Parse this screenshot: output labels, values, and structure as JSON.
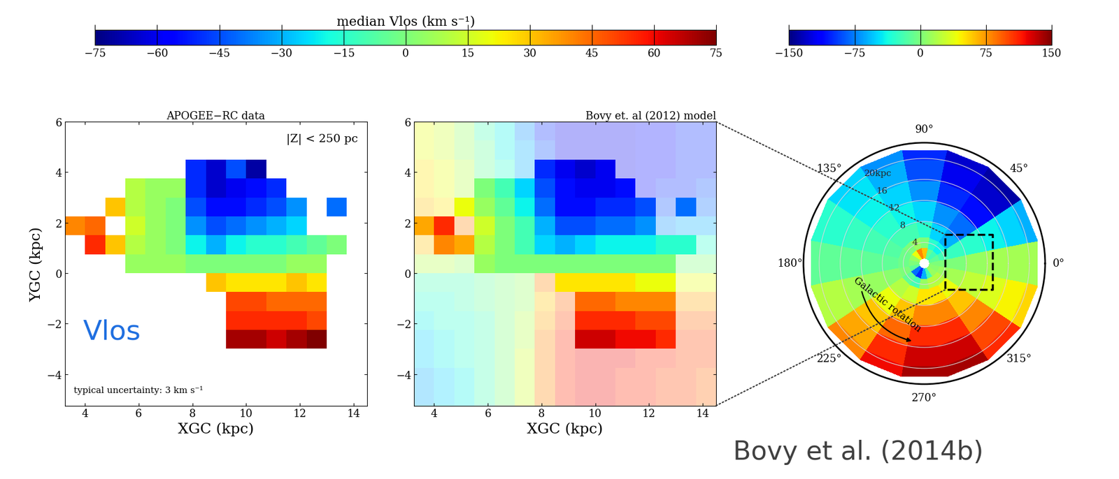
{
  "chart_data": [
    {
      "type": "heatmap",
      "title": "APOGEE−RC data",
      "xlabel": "XGC (kpc)",
      "ylabel": "YGC (kpc)",
      "annotations": [
        "|Z| < 250 pc",
        "Vlos",
        "typical uncertainty: 3 km s⁻¹"
      ],
      "colorbar_label": "median Vlos (km s⁻¹)",
      "colorbar_lim": [
        -75,
        75
      ],
      "colorbar_ticks": [
        {
          "value": -75,
          "label": "−75"
        },
        {
          "value": -60,
          "label": "−60"
        },
        {
          "value": -45,
          "label": "−45"
        },
        {
          "value": -30,
          "label": "−30"
        },
        {
          "value": -15,
          "label": "−15"
        },
        0,
        15,
        30,
        45,
        60,
        75
      ],
      "xlim": [
        3.25,
        14.5
      ],
      "ylim": [
        -5.25,
        6.0
      ],
      "xticks": [
        4,
        6,
        8,
        10,
        12,
        14
      ],
      "yticks": [
        {
          "value": -4,
          "label": "−4"
        },
        {
          "value": -2,
          "label": "−2"
        },
        0,
        2,
        4,
        6
      ],
      "x_edges": [
        3.25,
        4.0,
        4.75,
        5.5,
        6.25,
        7.0,
        7.75,
        8.5,
        9.25,
        10.0,
        10.75,
        11.5,
        12.25,
        13.0,
        13.75,
        14.5
      ],
      "y_edges": [
        -5.25,
        -4.5,
        -3.75,
        -3.0,
        -2.25,
        -1.5,
        -0.75,
        0.0,
        0.75,
        1.5,
        2.25,
        3.0,
        3.75,
        4.5,
        5.25,
        6.0
      ],
      "values": [
        [
          null,
          null,
          null,
          null,
          null,
          null,
          null,
          null,
          null,
          null,
          null,
          null,
          null,
          null,
          null
        ],
        [
          null,
          null,
          null,
          null,
          null,
          null,
          null,
          null,
          null,
          null,
          null,
          null,
          null,
          null,
          null
        ],
        [
          null,
          null,
          null,
          null,
          null,
          null,
          null,
          null,
          null,
          null,
          null,
          null,
          null,
          null,
          null
        ],
        [
          null,
          null,
          null,
          null,
          null,
          null,
          null,
          null,
          70,
          70,
          65,
          70,
          75,
          null,
          null
        ],
        [
          null,
          null,
          null,
          null,
          null,
          null,
          null,
          null,
          55,
          55,
          55,
          55,
          50,
          null,
          null
        ],
        [
          null,
          null,
          null,
          null,
          null,
          null,
          null,
          null,
          50,
          50,
          45,
          45,
          45,
          null,
          null
        ],
        [
          null,
          null,
          null,
          null,
          null,
          null,
          null,
          30,
          25,
          25,
          25,
          30,
          25,
          null,
          null
        ],
        [
          null,
          null,
          null,
          5,
          5,
          5,
          0,
          0,
          0,
          0,
          0,
          5,
          5,
          null,
          null
        ],
        [
          null,
          55,
          30,
          10,
          5,
          0,
          -20,
          -30,
          -20,
          -15,
          -15,
          -10,
          -5,
          0,
          null
        ],
        [
          40,
          45,
          null,
          15,
          5,
          0,
          -35,
          -45,
          -40,
          -35,
          -30,
          -25,
          null,
          null,
          null
        ],
        [
          null,
          null,
          30,
          10,
          5,
          0,
          -45,
          -55,
          -55,
          -50,
          -45,
          -35,
          null,
          -40,
          null
        ],
        [
          null,
          null,
          null,
          10,
          5,
          5,
          -50,
          -65,
          -60,
          -55,
          -50,
          null,
          null,
          null,
          null
        ],
        [
          null,
          null,
          null,
          null,
          null,
          null,
          -50,
          -65,
          -45,
          -70,
          null,
          null,
          null,
          null,
          null
        ],
        [
          null,
          null,
          null,
          null,
          null,
          null,
          null,
          null,
          null,
          null,
          null,
          null,
          null,
          null,
          null
        ],
        [
          null,
          null,
          null,
          null,
          null,
          null,
          null,
          null,
          null,
          null,
          null,
          null,
          null,
          null,
          null
        ]
      ]
    },
    {
      "type": "heatmap",
      "title": "Bovy et. al (2012) model",
      "xlabel": "XGC (kpc)",
      "colorbar_lim": [
        -75,
        75
      ],
      "xlim": [
        3.25,
        14.5
      ],
      "ylim": [
        -5.25,
        6.0
      ],
      "xticks": [
        4,
        6,
        8,
        10,
        12,
        14
      ],
      "yticks": [
        {
          "value": -4,
          "label": "−4"
        },
        {
          "value": -2,
          "label": "−2"
        },
        0,
        2,
        4,
        6
      ],
      "x_edges": [
        3.25,
        4.0,
        4.75,
        5.5,
        6.25,
        7.0,
        7.75,
        8.5,
        9.25,
        10.0,
        10.75,
        11.5,
        12.25,
        13.0,
        13.75,
        14.5
      ],
      "y_edges": [
        -5.25,
        -4.5,
        -3.75,
        -3.0,
        -2.25,
        -1.5,
        -0.75,
        0.0,
        0.75,
        1.5,
        2.25,
        3.0,
        3.75,
        4.5,
        5.25,
        6.0
      ],
      "values": [
        [
          -30,
          -25,
          -20,
          -10,
          0,
          15,
          40,
          55,
          60,
          60,
          55,
          55,
          50,
          50,
          45
        ],
        [
          -30,
          -25,
          -20,
          -10,
          0,
          15,
          40,
          55,
          60,
          60,
          55,
          55,
          50,
          50,
          45
        ],
        [
          -25,
          -20,
          -15,
          -10,
          0,
          15,
          40,
          55,
          60,
          60,
          60,
          55,
          55,
          50,
          50
        ],
        [
          -25,
          -20,
          -15,
          -10,
          0,
          10,
          40,
          55,
          65,
          65,
          60,
          60,
          55,
          50,
          50
        ],
        [
          -20,
          -15,
          -15,
          -10,
          0,
          10,
          35,
          50,
          55,
          55,
          55,
          50,
          50,
          45,
          45
        ],
        [
          -15,
          -15,
          -10,
          -5,
          0,
          5,
          30,
          45,
          45,
          45,
          40,
          40,
          40,
          35,
          35
        ],
        [
          -10,
          -10,
          -10,
          -5,
          0,
          5,
          40,
          25,
          25,
          25,
          25,
          20,
          20,
          20,
          20
        ],
        [
          10,
          10,
          5,
          5,
          0,
          0,
          0,
          0,
          0,
          0,
          0,
          0,
          0,
          0,
          0
        ],
        [
          30,
          40,
          35,
          10,
          0,
          -10,
          -25,
          -30,
          -25,
          -20,
          -20,
          -20,
          -15,
          -15,
          -15
        ],
        [
          35,
          55,
          40,
          15,
          0,
          -10,
          -30,
          -45,
          -45,
          -40,
          -40,
          -35,
          -35,
          -30,
          -30
        ],
        [
          30,
          25,
          20,
          5,
          -5,
          -20,
          -40,
          -55,
          -55,
          -50,
          -50,
          -45,
          -45,
          -40,
          -40
        ],
        [
          25,
          20,
          10,
          0,
          -10,
          -25,
          -45,
          -55,
          -60,
          -60,
          -55,
          -55,
          -50,
          -50,
          -45
        ],
        [
          25,
          20,
          10,
          -5,
          -15,
          -30,
          -50,
          -60,
          -65,
          -60,
          -60,
          -55,
          -55,
          -50,
          -50
        ],
        [
          20,
          15,
          5,
          -5,
          -20,
          -30,
          -45,
          -60,
          -60,
          -60,
          -60,
          -55,
          -55,
          -50,
          -50
        ],
        [
          20,
          15,
          5,
          -10,
          -20,
          -35,
          -50,
          -60,
          -60,
          -60,
          -60,
          -55,
          -55,
          -50,
          -50
        ]
      ]
    },
    {
      "type": "polar_heatmap",
      "annotations": [
        "Galactic rotation",
        "Bovy et al. (2014b)"
      ],
      "colorbar_lim": [
        -150,
        150
      ],
      "colorbar_ticks": [
        {
          "value": -150,
          "label": "−150"
        },
        {
          "value": -75,
          "label": "−75"
        },
        0,
        75,
        150
      ],
      "ylim": [
        0,
        23
      ],
      "xticks": [
        {
          "value": 0,
          "label": "0°"
        },
        {
          "value": 45,
          "label": "45°"
        },
        {
          "value": 90,
          "label": "90°"
        },
        {
          "value": 135,
          "label": "135°"
        },
        {
          "value": 180,
          "label": "180°"
        },
        {
          "value": 225,
          "label": "225°"
        },
        {
          "value": 270,
          "label": "270°"
        },
        {
          "value": 315,
          "label": "315°"
        }
      ],
      "yticks": [
        4,
        8,
        12,
        16,
        {
          "value": 20,
          "label": "20kpc"
        }
      ],
      "theta_edges": [
        -11.25,
        11.25,
        33.75,
        56.25,
        78.75,
        101.25,
        123.75,
        146.25,
        168.75,
        191.25,
        213.75,
        236.25,
        258.75,
        281.25,
        303.75,
        326.25,
        348.75
      ],
      "r_edges": [
        1,
        3,
        5,
        8,
        12,
        16,
        20,
        22
      ],
      "values": [
        [
          0,
          0,
          0,
          10,
          15,
          15,
          15
        ],
        [
          -10,
          -20,
          -25,
          -30,
          -40,
          -50,
          -60
        ],
        [
          -20,
          -40,
          -60,
          -80,
          -110,
          -130,
          -140
        ],
        [
          -10,
          -30,
          -50,
          -70,
          -100,
          -120,
          -130
        ],
        [
          60,
          0,
          -30,
          -50,
          -70,
          -90,
          -100
        ],
        [
          80,
          10,
          -20,
          -40,
          -50,
          -60,
          -70
        ],
        [
          40,
          0,
          -20,
          -30,
          -40,
          -45,
          -50
        ],
        [
          10,
          -5,
          -15,
          -20,
          -25,
          -30,
          -30
        ],
        [
          0,
          -5,
          -10,
          -10,
          -10,
          -10,
          -10
        ],
        [
          -10,
          0,
          5,
          10,
          15,
          20,
          20
        ],
        [
          -80,
          -10,
          20,
          40,
          60,
          70,
          80
        ],
        [
          -100,
          -20,
          30,
          60,
          90,
          110,
          120
        ],
        [
          -60,
          10,
          50,
          80,
          110,
          130,
          140
        ],
        [
          -20,
          20,
          50,
          80,
          110,
          130,
          140
        ],
        [
          10,
          20,
          40,
          60,
          80,
          100,
          110
        ],
        [
          5,
          10,
          15,
          25,
          35,
          45,
          55
        ]
      ]
    }
  ]
}
